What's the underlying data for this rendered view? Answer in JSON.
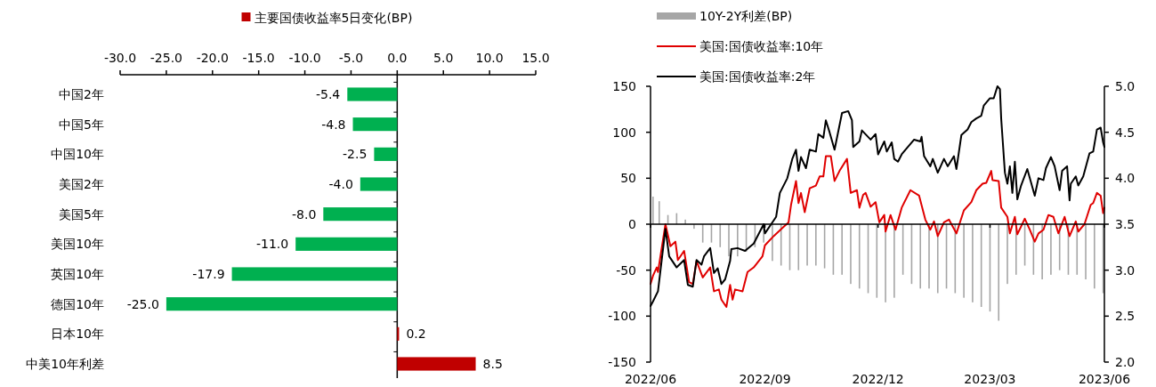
{
  "chart_data": [
    {
      "type": "bar",
      "orientation": "horizontal",
      "legend": "top",
      "categories": [
        "中国2年",
        "中国5年",
        "中国10年",
        "美国2年",
        "美国5年",
        "美国10年",
        "英国10年",
        "德国10年",
        "日本10年",
        "中美10年利差"
      ],
      "series": [
        {
          "name": "主要国债收益率5日变化(BP)",
          "color": "#c00000",
          "colors": [
            "#00b050",
            "#00b050",
            "#00b050",
            "#00b050",
            "#00b050",
            "#00b050",
            "#00b050",
            "#00b050",
            "#c00000",
            "#c00000"
          ],
          "values": [
            -5.4,
            -4.8,
            -2.5,
            -4.0,
            -8.0,
            -11.0,
            -17.9,
            -25.0,
            0.2,
            8.5
          ],
          "value_labels": [
            "-5.4",
            "-4.8",
            "-2.5",
            "-4.0",
            "-8.0",
            "-11.0",
            "-17.9",
            "-25.0",
            "0.2",
            "8.5"
          ]
        }
      ],
      "xlim": [
        -30,
        15
      ],
      "xticks": [
        {
          "value": -30,
          "label": "-30.0"
        },
        {
          "value": -25,
          "label": "-25.0"
        },
        {
          "value": -20,
          "label": "-20.0"
        },
        {
          "value": -15,
          "label": "-15.0"
        },
        {
          "value": -10,
          "label": "-10.0"
        },
        {
          "value": -5,
          "label": "-5.0"
        },
        {
          "value": 0,
          "label": "0.0"
        },
        {
          "value": 5,
          "label": "5.0"
        },
        {
          "value": 10,
          "label": "10.0"
        },
        {
          "value": 15,
          "label": "15.0"
        }
      ]
    },
    {
      "type": "line",
      "legend": "top",
      "xlim": [
        "2022-06",
        "2023-06"
      ],
      "xticks": [
        {
          "value": "2022-06",
          "label": "2022/06"
        },
        {
          "value": "2022-09",
          "label": "2022/09"
        },
        {
          "value": "2022-12",
          "label": "2022/12"
        },
        {
          "value": "2023-03",
          "label": "2023/03"
        },
        {
          "value": "2023-06",
          "label": "2023/06"
        }
      ],
      "ylim": [
        -150,
        150
      ],
      "yticks": [
        -150,
        -100,
        -50,
        0,
        50,
        100,
        150
      ],
      "y2lim": [
        2,
        5
      ],
      "y2ticks": [
        {
          "value": 2,
          "label": "2.0"
        },
        {
          "value": 2.5,
          "label": "2.5"
        },
        {
          "value": 3,
          "label": "3.0"
        },
        {
          "value": 3.5,
          "label": "3.5"
        },
        {
          "value": 4,
          "label": "4.0"
        },
        {
          "value": 4.5,
          "label": "4.5"
        },
        {
          "value": 5,
          "label": "5.0"
        }
      ],
      "series": [
        {
          "name": "10Y-2Y利差(BP)",
          "type": "bar",
          "color": "#a6a6a6",
          "x": [
            "2022-06-03",
            "2022-06-08",
            "2022-06-15",
            "2022-06-22",
            "2022-06-29",
            "2022-07-06",
            "2022-07-13",
            "2022-07-20",
            "2022-07-27",
            "2022-08-03",
            "2022-08-10",
            "2022-08-17",
            "2022-08-24",
            "2022-08-31",
            "2022-09-07",
            "2022-09-14",
            "2022-09-21",
            "2022-09-28",
            "2022-10-05",
            "2022-10-12",
            "2022-10-19",
            "2022-10-26",
            "2022-11-02",
            "2022-11-09",
            "2022-11-16",
            "2022-11-23",
            "2022-11-30",
            "2022-12-07",
            "2022-12-14",
            "2022-12-21",
            "2022-12-28",
            "2023-01-04",
            "2023-01-11",
            "2023-01-18",
            "2023-01-25",
            "2023-02-01",
            "2023-02-08",
            "2023-02-15",
            "2023-02-22",
            "2023-03-01",
            "2023-03-08",
            "2023-03-15",
            "2023-03-22",
            "2023-03-29",
            "2023-04-05",
            "2023-04-12",
            "2023-04-19",
            "2023-04-26",
            "2023-05-03",
            "2023-05-10",
            "2023-05-17",
            "2023-05-24",
            "2023-05-31"
          ],
          "values": [
            30,
            25,
            10,
            12,
            5,
            -5,
            -20,
            -20,
            -25,
            -35,
            -35,
            -30,
            -25,
            -20,
            -40,
            -45,
            -50,
            -50,
            -45,
            -45,
            -48,
            -55,
            -55,
            -65,
            -70,
            -75,
            -80,
            -85,
            -80,
            -55,
            -65,
            -70,
            -70,
            -75,
            -70,
            -75,
            -80,
            -85,
            -90,
            -95,
            -105,
            -65,
            -55,
            -45,
            -55,
            -60,
            -55,
            -50,
            -55,
            -55,
            -60,
            -70,
            -75
          ]
        },
        {
          "name": "美国:国债收益率:10年",
          "color": "#e00000",
          "axis": "y2",
          "x": [
            "2022-06-01",
            "2022-06-03",
            "2022-06-06",
            "2022-06-07",
            "2022-06-13",
            "2022-06-17",
            "2022-06-21",
            "2022-06-23",
            "2022-06-28",
            "2022-07-02",
            "2022-07-05",
            "2022-07-08",
            "2022-07-13",
            "2022-07-19",
            "2022-07-22",
            "2022-07-26",
            "2022-07-28",
            "2022-08-01",
            "2022-08-04",
            "2022-08-06",
            "2022-08-08",
            "2022-08-14",
            "2022-08-18",
            "2022-08-23",
            "2022-08-30",
            "2022-09-01",
            "2022-09-08",
            "2022-09-16",
            "2022-09-20",
            "2022-09-22",
            "2022-09-26",
            "2022-09-28",
            "2022-09-30",
            "2022-10-03",
            "2022-10-07",
            "2022-10-12",
            "2022-10-15",
            "2022-10-18",
            "2022-10-20",
            "2022-10-24",
            "2022-10-27",
            "2022-10-31",
            "2022-11-06",
            "2022-11-09",
            "2022-11-14",
            "2022-11-16",
            "2022-11-19",
            "2022-11-21",
            "2022-11-25",
            "2022-11-29",
            "2022-12-02",
            "2022-12-06",
            "2022-12-07",
            "2022-12-11",
            "2022-12-15",
            "2022-12-20",
            "2022-12-27",
            "2023-01-03",
            "2023-01-08",
            "2023-01-12",
            "2023-01-15",
            "2023-01-18",
            "2023-01-23",
            "2023-01-27",
            "2023-02-02",
            "2023-02-08",
            "2023-02-14",
            "2023-02-18",
            "2023-02-23",
            "2023-02-26",
            "2023-03-02",
            "2023-03-03",
            "2023-03-08",
            "2023-03-10",
            "2023-03-15",
            "2023-03-17",
            "2023-03-21",
            "2023-03-23",
            "2023-03-29",
            "2023-04-02",
            "2023-04-06",
            "2023-04-09",
            "2023-04-13",
            "2023-04-17",
            "2023-04-21",
            "2023-04-25",
            "2023-04-30",
            "2023-05-04",
            "2023-05-09",
            "2023-05-11",
            "2023-05-16",
            "2023-05-21",
            "2023-05-23",
            "2023-05-26",
            "2023-05-29",
            "2023-05-31",
            "2023-06-01"
          ],
          "values": [
            2.85,
            2.94,
            3.03,
            2.98,
            3.5,
            3.26,
            3.31,
            3.11,
            3.21,
            2.87,
            2.85,
            3.1,
            2.92,
            3.03,
            2.77,
            2.79,
            2.68,
            2.6,
            2.84,
            2.68,
            2.79,
            2.77,
            2.98,
            3.03,
            3.15,
            3.27,
            3.37,
            3.47,
            3.52,
            3.71,
            3.97,
            3.73,
            3.84,
            3.63,
            3.89,
            3.92,
            4.02,
            4.02,
            4.24,
            4.24,
            3.97,
            4.08,
            4.21,
            3.84,
            3.87,
            3.68,
            3.82,
            3.84,
            3.69,
            3.74,
            3.52,
            3.6,
            3.42,
            3.6,
            3.44,
            3.68,
            3.87,
            3.81,
            3.55,
            3.44,
            3.53,
            3.37,
            3.52,
            3.55,
            3.4,
            3.65,
            3.74,
            3.87,
            3.94,
            3.95,
            4.08,
            3.98,
            3.97,
            3.68,
            3.58,
            3.4,
            3.58,
            3.39,
            3.56,
            3.44,
            3.31,
            3.4,
            3.44,
            3.6,
            3.58,
            3.4,
            3.58,
            3.37,
            3.53,
            3.42,
            3.5,
            3.71,
            3.73,
            3.84,
            3.81,
            3.62,
            3.68
          ]
        },
        {
          "name": "美国:国债收益率:2年",
          "color": "#000000",
          "axis": "y2",
          "x": [
            "2022-06-01",
            "2022-06-03",
            "2022-06-07",
            "2022-06-13",
            "2022-06-16",
            "2022-06-22",
            "2022-06-28",
            "2022-07-01",
            "2022-07-05",
            "2022-07-08",
            "2022-07-12",
            "2022-07-14",
            "2022-07-19",
            "2022-07-22",
            "2022-07-25",
            "2022-07-28",
            "2022-07-31",
            "2022-08-04",
            "2022-08-05",
            "2022-08-10",
            "2022-08-16",
            "2022-08-23",
            "2022-08-31",
            "2022-09-01",
            "2022-09-06",
            "2022-09-10",
            "2022-09-13",
            "2022-09-19",
            "2022-09-23",
            "2022-09-26",
            "2022-09-28",
            "2022-09-30",
            "2022-10-04",
            "2022-10-07",
            "2022-10-12",
            "2022-10-14",
            "2022-10-18",
            "2022-10-20",
            "2022-10-23",
            "2022-10-27",
            "2022-11-02",
            "2022-11-07",
            "2022-11-10",
            "2022-11-11",
            "2022-11-16",
            "2022-11-18",
            "2022-11-25",
            "2022-11-29",
            "2022-12-01",
            "2022-12-06",
            "2022-12-08",
            "2022-12-12",
            "2022-12-14",
            "2022-12-17",
            "2022-12-20",
            "2022-12-23",
            "2022-12-30",
            "2023-01-04",
            "2023-01-05",
            "2023-01-07",
            "2023-01-12",
            "2023-01-14",
            "2023-01-18",
            "2023-01-23",
            "2023-01-26",
            "2023-01-31",
            "2023-02-02",
            "2023-02-06",
            "2023-02-11",
            "2023-02-14",
            "2023-02-18",
            "2023-02-22",
            "2023-02-24",
            "2023-03-01",
            "2023-03-04",
            "2023-03-07",
            "2023-03-09",
            "2023-03-10",
            "2023-03-13",
            "2023-03-15",
            "2023-03-17",
            "2023-03-19",
            "2023-03-21",
            "2023-03-23",
            "2023-03-26",
            "2023-03-31",
            "2023-04-06",
            "2023-04-09",
            "2023-04-13",
            "2023-04-15",
            "2023-04-19",
            "2023-04-22",
            "2023-04-26",
            "2023-04-28",
            "2023-05-02",
            "2023-05-04",
            "2023-05-05",
            "2023-05-09",
            "2023-05-11",
            "2023-05-15",
            "2023-05-20",
            "2023-05-23",
            "2023-05-26",
            "2023-05-29",
            "2023-05-31",
            "2023-06-01"
          ],
          "values": [
            2.61,
            2.66,
            2.77,
            3.45,
            3.15,
            3.03,
            3.11,
            2.84,
            2.82,
            3.11,
            3.06,
            3.15,
            3.24,
            2.97,
            3.02,
            2.85,
            2.9,
            3.1,
            3.23,
            3.24,
            3.21,
            3.29,
            3.5,
            3.4,
            3.5,
            3.58,
            3.84,
            4.0,
            4.21,
            4.31,
            4.08,
            4.23,
            4.11,
            4.31,
            4.29,
            4.48,
            4.44,
            4.63,
            4.5,
            4.31,
            4.71,
            4.73,
            4.63,
            4.34,
            4.4,
            4.52,
            4.42,
            4.48,
            4.26,
            4.4,
            4.29,
            4.39,
            4.21,
            4.18,
            4.26,
            4.31,
            4.42,
            4.4,
            4.45,
            4.24,
            4.13,
            4.21,
            4.06,
            4.21,
            4.13,
            4.24,
            4.1,
            4.47,
            4.53,
            4.61,
            4.65,
            4.68,
            4.79,
            4.87,
            4.87,
            5.0,
            4.97,
            4.65,
            4.06,
            3.94,
            4.13,
            3.84,
            4.18,
            3.77,
            3.92,
            4.1,
            3.81,
            4.0,
            3.98,
            4.11,
            4.23,
            4.13,
            3.87,
            4.08,
            4.13,
            3.76,
            3.94,
            4.02,
            3.92,
            4.02,
            4.27,
            4.29,
            4.53,
            4.55,
            4.39,
            4.34
          ]
        }
      ]
    }
  ]
}
